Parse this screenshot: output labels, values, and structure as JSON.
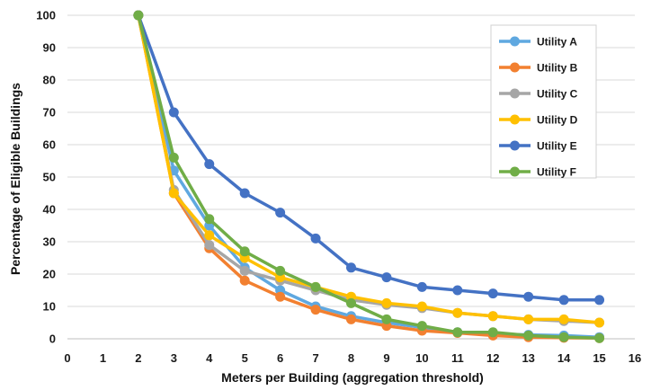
{
  "chart_data": {
    "type": "line",
    "title": "",
    "xlabel": "Meters per Building (aggregation threshold)",
    "ylabel": "Percentage of Eligible Buildings",
    "xlim": [
      0,
      16
    ],
    "ylim": [
      0,
      100
    ],
    "xticks": [
      0,
      1,
      2,
      3,
      4,
      5,
      6,
      7,
      8,
      9,
      10,
      11,
      12,
      13,
      14,
      15,
      16
    ],
    "yticks": [
      0,
      10,
      20,
      30,
      40,
      50,
      60,
      70,
      80,
      90,
      100
    ],
    "grid": "horizontal",
    "legend_position": "top-right",
    "x": [
      2,
      3,
      4,
      5,
      6,
      7,
      8,
      9,
      10,
      11,
      12,
      13,
      14,
      15
    ],
    "series": [
      {
        "name": "Utility A",
        "color": "#5fa8e0",
        "values": [
          100,
          52,
          35,
          22,
          15,
          10,
          7,
          5,
          3.5,
          2,
          1.5,
          1.2,
          1,
          0.5
        ]
      },
      {
        "name": "Utility B",
        "color": "#f28030",
        "values": [
          100,
          45,
          28,
          18,
          13,
          9,
          6,
          4,
          2.5,
          1.8,
          1,
          0.5,
          0.3,
          0.2
        ]
      },
      {
        "name": "Utility C",
        "color": "#a6a6a6",
        "values": [
          100,
          46,
          29,
          21,
          18,
          15,
          12,
          10.5,
          9.5,
          8,
          7,
          6,
          5.5,
          5
        ]
      },
      {
        "name": "Utility D",
        "color": "#ffc000",
        "values": [
          100,
          45,
          32,
          25,
          19,
          16,
          13,
          11,
          10,
          8,
          7,
          6,
          6,
          5
        ]
      },
      {
        "name": "Utility E",
        "color": "#4472c4",
        "values": [
          100,
          70,
          54,
          45,
          39,
          31,
          22,
          19,
          16,
          15,
          14,
          13,
          12,
          12
        ]
      },
      {
        "name": "Utility F",
        "color": "#70ad47",
        "values": [
          100,
          56,
          37,
          27,
          21,
          16,
          11,
          6,
          4,
          2,
          2,
          1,
          0.5,
          0.2
        ]
      }
    ]
  }
}
